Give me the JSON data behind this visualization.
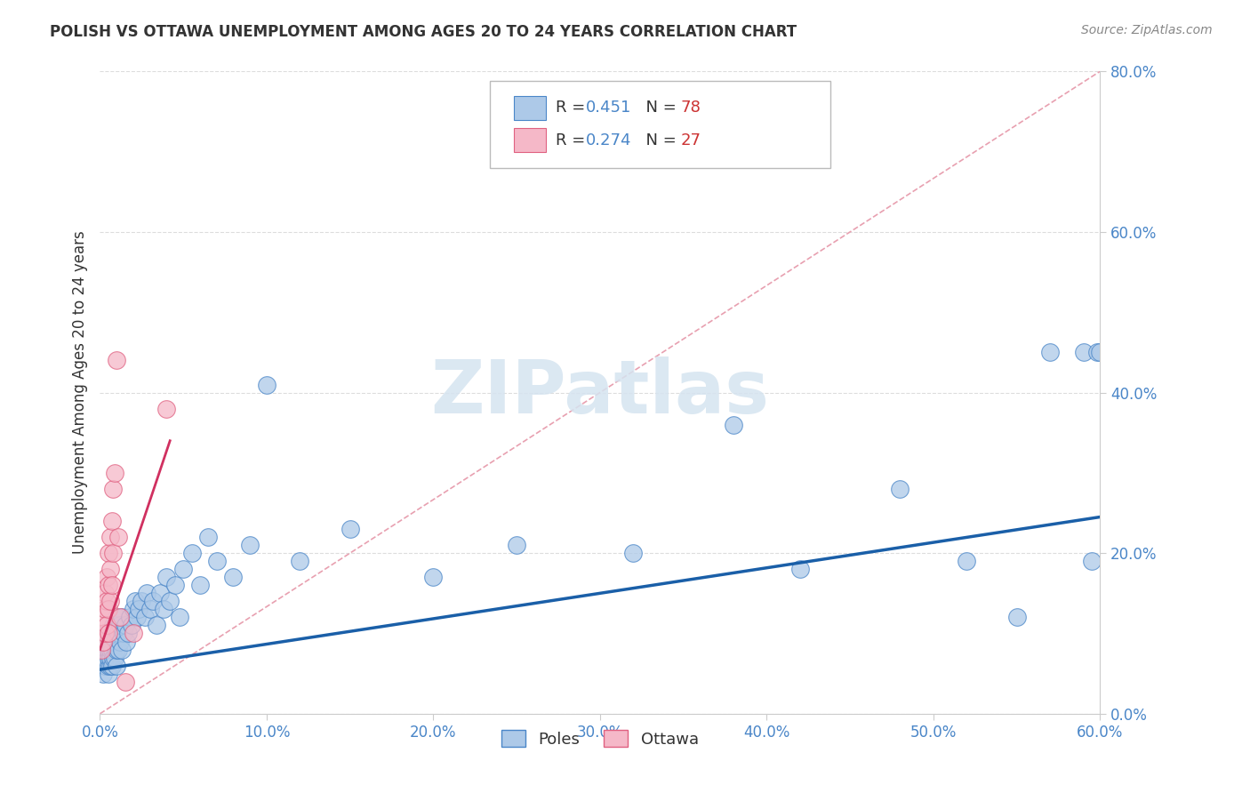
{
  "title": "POLISH VS OTTAWA UNEMPLOYMENT AMONG AGES 20 TO 24 YEARS CORRELATION CHART",
  "source": "Source: ZipAtlas.com",
  "ylabel": "Unemployment Among Ages 20 to 24 years",
  "xlim": [
    0.0,
    0.6
  ],
  "ylim": [
    0.0,
    0.8
  ],
  "xticks": [
    0.0,
    0.1,
    0.2,
    0.3,
    0.4,
    0.5,
    0.6
  ],
  "yticks": [
    0.0,
    0.2,
    0.4,
    0.6,
    0.8
  ],
  "xtick_labels": [
    "0.0%",
    "10.0%",
    "20.0%",
    "30.0%",
    "40.0%",
    "50.0%",
    "60.0%"
  ],
  "ytick_labels": [
    "0.0%",
    "20.0%",
    "40.0%",
    "60.0%",
    "80.0%"
  ],
  "poles_R": 0.451,
  "poles_N": 78,
  "ottawa_R": 0.274,
  "ottawa_N": 27,
  "poles_color": "#adc9e8",
  "poles_edge_color": "#4a86c8",
  "poles_line_color": "#1a5fa8",
  "ottawa_color": "#f5b8c8",
  "ottawa_edge_color": "#e06080",
  "ottawa_line_color": "#d03060",
  "diagonal_color": "#e8a0b0",
  "watermark_color": "#d5e4f0",
  "watermark": "ZIPatlas",
  "poles_scatter_x": [
    0.002,
    0.003,
    0.003,
    0.004,
    0.004,
    0.004,
    0.005,
    0.005,
    0.005,
    0.005,
    0.005,
    0.006,
    0.006,
    0.006,
    0.006,
    0.007,
    0.007,
    0.007,
    0.008,
    0.008,
    0.008,
    0.009,
    0.009,
    0.009,
    0.01,
    0.01,
    0.01,
    0.011,
    0.011,
    0.012,
    0.012,
    0.013,
    0.013,
    0.014,
    0.015,
    0.016,
    0.017,
    0.018,
    0.019,
    0.02,
    0.021,
    0.022,
    0.023,
    0.025,
    0.027,
    0.028,
    0.03,
    0.032,
    0.034,
    0.036,
    0.038,
    0.04,
    0.042,
    0.045,
    0.048,
    0.05,
    0.055,
    0.06,
    0.065,
    0.07,
    0.08,
    0.09,
    0.1,
    0.12,
    0.15,
    0.2,
    0.25,
    0.32,
    0.38,
    0.42,
    0.48,
    0.52,
    0.55,
    0.57,
    0.59,
    0.595,
    0.598,
    0.6
  ],
  "poles_scatter_y": [
    0.05,
    0.06,
    0.07,
    0.08,
    0.09,
    0.1,
    0.05,
    0.06,
    0.07,
    0.08,
    0.09,
    0.06,
    0.07,
    0.08,
    0.09,
    0.06,
    0.08,
    0.1,
    0.07,
    0.09,
    0.11,
    0.07,
    0.09,
    0.11,
    0.06,
    0.08,
    0.12,
    0.08,
    0.1,
    0.09,
    0.11,
    0.08,
    0.12,
    0.1,
    0.11,
    0.09,
    0.1,
    0.12,
    0.11,
    0.13,
    0.14,
    0.12,
    0.13,
    0.14,
    0.12,
    0.15,
    0.13,
    0.14,
    0.11,
    0.15,
    0.13,
    0.17,
    0.14,
    0.16,
    0.12,
    0.18,
    0.2,
    0.16,
    0.22,
    0.19,
    0.17,
    0.21,
    0.41,
    0.19,
    0.23,
    0.17,
    0.21,
    0.2,
    0.36,
    0.18,
    0.28,
    0.19,
    0.12,
    0.45,
    0.45,
    0.19,
    0.45,
    0.45
  ],
  "ottawa_scatter_x": [
    0.001,
    0.002,
    0.002,
    0.003,
    0.003,
    0.003,
    0.004,
    0.004,
    0.004,
    0.005,
    0.005,
    0.005,
    0.005,
    0.006,
    0.006,
    0.006,
    0.007,
    0.007,
    0.008,
    0.008,
    0.009,
    0.01,
    0.011,
    0.012,
    0.015,
    0.02,
    0.04
  ],
  "ottawa_scatter_y": [
    0.08,
    0.09,
    0.12,
    0.1,
    0.13,
    0.15,
    0.11,
    0.14,
    0.17,
    0.1,
    0.13,
    0.16,
    0.2,
    0.14,
    0.18,
    0.22,
    0.16,
    0.24,
    0.2,
    0.28,
    0.3,
    0.44,
    0.22,
    0.12,
    0.04,
    0.1,
    0.38
  ],
  "poles_line_x": [
    0.0,
    0.6
  ],
  "poles_line_y": [
    0.055,
    0.245
  ],
  "ottawa_line_x": [
    0.0,
    0.042
  ],
  "ottawa_line_y": [
    0.08,
    0.34
  ],
  "diag_line_x": [
    0.0,
    0.6
  ],
  "diag_line_y": [
    0.0,
    0.8
  ]
}
